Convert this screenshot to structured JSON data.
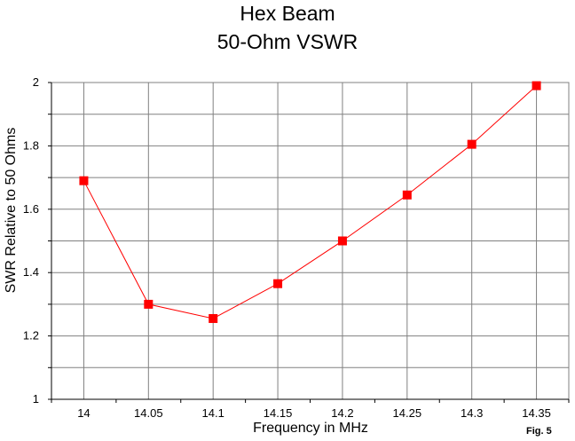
{
  "chart_data": {
    "type": "line",
    "title": "Hex Beam",
    "subtitle": "50-Ohm VSWR",
    "xlabel": "Frequency in MHz",
    "ylabel": "SWR Relative to 50 Ohms",
    "x": [
      14,
      14.05,
      14.1,
      14.15,
      14.2,
      14.25,
      14.3,
      14.35
    ],
    "x_tick_labels": [
      "14",
      "14.05",
      "14.1",
      "14.15",
      "14.2",
      "14.25",
      "14.3",
      "14.35"
    ],
    "series": [
      {
        "values": [
          1.69,
          1.3,
          1.255,
          1.365,
          1.5,
          1.645,
          1.805,
          1.99
        ],
        "color": "#ff0000",
        "marker": "square"
      }
    ],
    "ylim": [
      1,
      2
    ],
    "y_ticks": [
      1,
      1.2,
      1.4,
      1.6,
      1.8,
      2
    ],
    "y_minor_step": 0.1,
    "grid": true,
    "legend": "none",
    "note": "Fig. 5"
  }
}
